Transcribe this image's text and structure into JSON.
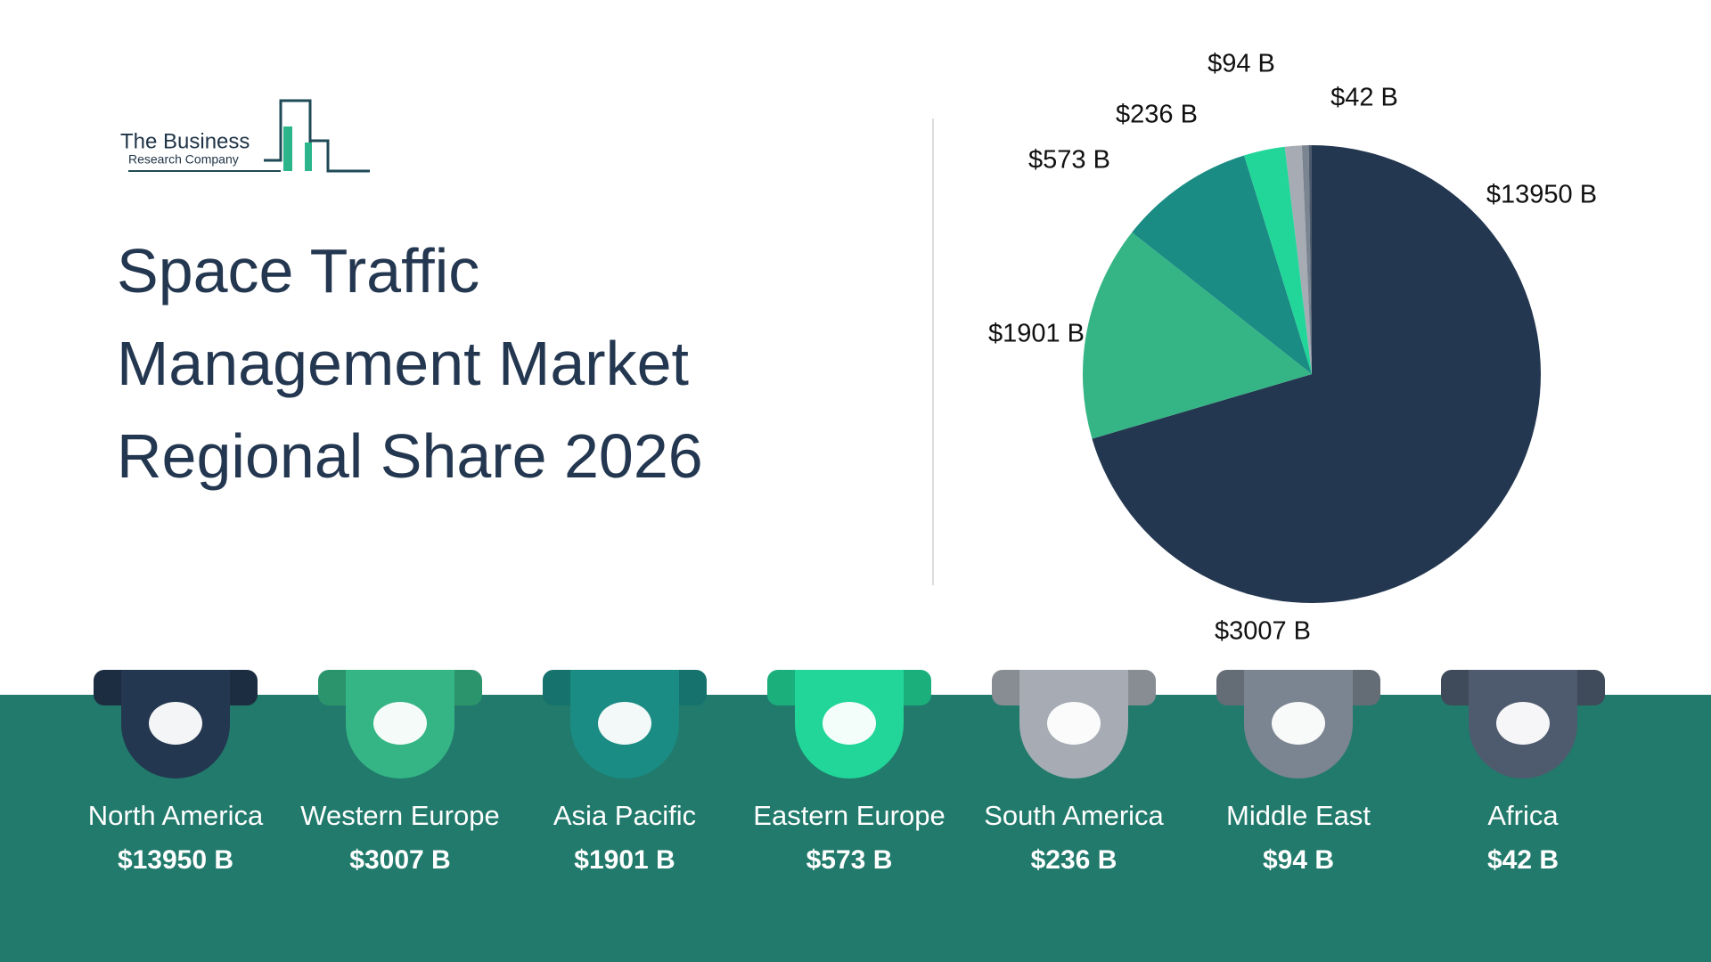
{
  "logo": {
    "line1": "The Business",
    "line2": "Research Company"
  },
  "chart_data": {
    "type": "pie",
    "title": "Space Traffic Management Market Regional Share 2026",
    "categories": [
      "North America",
      "Western Europe",
      "Asia Pacific",
      "Eastern Europe",
      "South America",
      "Middle East",
      "Africa"
    ],
    "values": [
      13950,
      3007,
      1901,
      573,
      236,
      94,
      42
    ],
    "value_labels": [
      "$13950 B",
      "$3007 B",
      "$1901 B",
      "$573 B",
      "$236 B",
      "$94 B",
      "$42 B"
    ],
    "colors": [
      "#243750",
      "#35b585",
      "#1a8c84",
      "#21d698",
      "#a6abb4",
      "#7b8491",
      "#4e5b6e"
    ]
  }
}
